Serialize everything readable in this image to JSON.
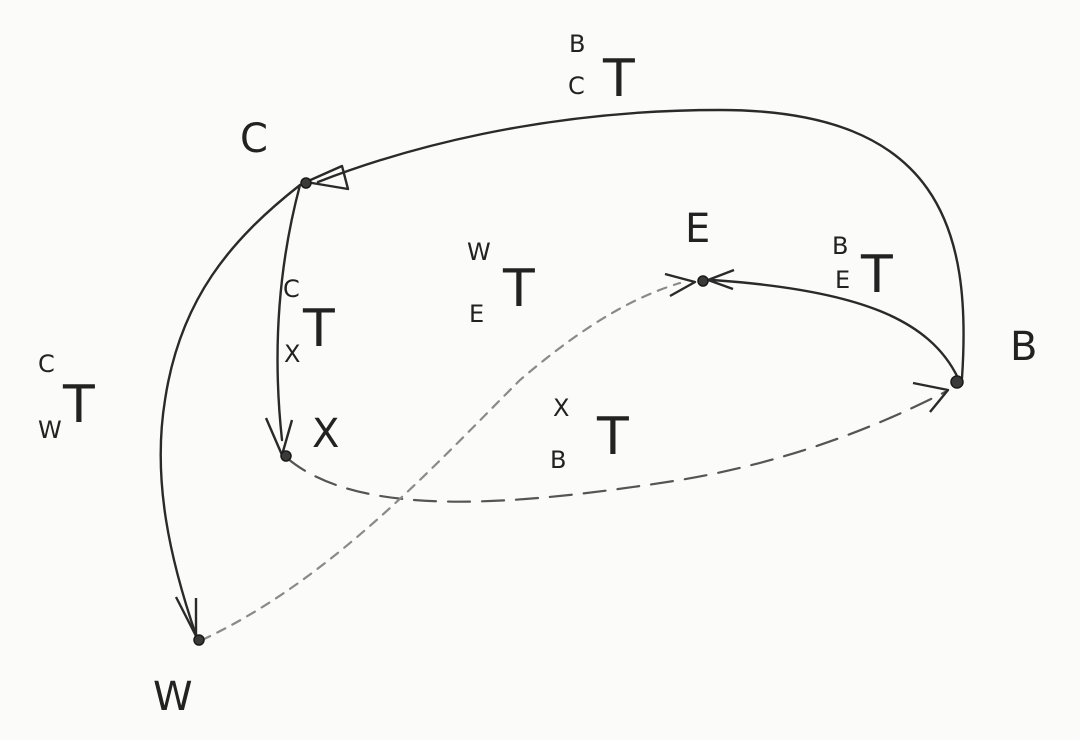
{
  "nodes": {
    "C": {
      "label": "C"
    },
    "E": {
      "label": "E"
    },
    "B": {
      "label": "B"
    },
    "X": {
      "label": "X"
    },
    "W": {
      "label": "W"
    }
  },
  "transforms": {
    "c_from_b": {
      "main": "T",
      "sup": "B",
      "sub": "C"
    },
    "x_from_c": {
      "main": "T",
      "sup": "C",
      "sub": "X"
    },
    "w_from_c": {
      "main": "T",
      "sup": "C",
      "sub": "W"
    },
    "e_from_w": {
      "main": "T",
      "sup": "W",
      "sub": "E"
    },
    "e_from_b": {
      "main": "T",
      "sup": "B",
      "sub": "E"
    },
    "b_from_x": {
      "main": "T",
      "sup": "X",
      "sub": "B"
    }
  }
}
